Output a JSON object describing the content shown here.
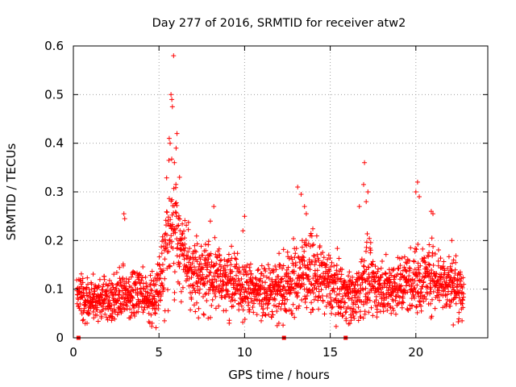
{
  "chart_data": {
    "type": "scatter",
    "title": "Day 277 of 2016, SRMTID for receiver atw2",
    "xlabel": "GPS time / hours",
    "ylabel": "SRMTID / TECUs",
    "xlim": [
      0,
      24.2
    ],
    "ylim": [
      0,
      0.6
    ],
    "xticks": [
      0,
      5,
      10,
      15,
      20
    ],
    "xtick_labels": [
      "0",
      "5",
      "10",
      "15",
      "20"
    ],
    "yticks": [
      0,
      0.1,
      0.2,
      0.3,
      0.4,
      0.5,
      0.6
    ],
    "ytick_labels": [
      "0",
      "0.1",
      "0.2",
      "0.3",
      "0.4",
      "0.5",
      "0.6"
    ],
    "grid": true,
    "marker": "+",
    "color": "#ff0000",
    "data_gap_markers_x": [
      0.3,
      12.3,
      15.9
    ],
    "series": [
      {
        "name": "SRMTID",
        "profile_x": [
          0.2,
          1.0,
          2.0,
          3.0,
          4.0,
          4.8,
          5.1,
          5.5,
          5.8,
          6.2,
          6.6,
          7.0,
          8.0,
          9.0,
          10.0,
          11.0,
          12.0,
          13.0,
          13.6,
          14.0,
          15.0,
          16.0,
          16.4,
          17.0,
          17.5,
          18.0,
          19.0,
          20.0,
          20.5,
          21.0,
          22.0,
          22.8
        ],
        "profile_median": [
          0.09,
          0.08,
          0.08,
          0.09,
          0.09,
          0.08,
          0.13,
          0.2,
          0.24,
          0.2,
          0.15,
          0.13,
          0.13,
          0.12,
          0.1,
          0.1,
          0.1,
          0.12,
          0.14,
          0.13,
          0.11,
          0.09,
          0.08,
          0.12,
          0.11,
          0.1,
          0.11,
          0.12,
          0.12,
          0.13,
          0.11,
          0.1
        ],
        "profile_spread": [
          0.03,
          0.03,
          0.03,
          0.035,
          0.035,
          0.03,
          0.05,
          0.08,
          0.09,
          0.06,
          0.05,
          0.045,
          0.045,
          0.04,
          0.035,
          0.035,
          0.04,
          0.05,
          0.05,
          0.045,
          0.04,
          0.035,
          0.035,
          0.05,
          0.04,
          0.035,
          0.04,
          0.045,
          0.045,
          0.045,
          0.04,
          0.035
        ],
        "outliers": [
          [
            2.95,
            0.255
          ],
          [
            3.0,
            0.245
          ],
          [
            5.7,
            0.5
          ],
          [
            5.75,
            0.49
          ],
          [
            5.78,
            0.475
          ],
          [
            5.85,
            0.58
          ],
          [
            5.6,
            0.41
          ],
          [
            5.65,
            0.4
          ],
          [
            6.05,
            0.42
          ],
          [
            6.0,
            0.39
          ],
          [
            5.9,
            0.36
          ],
          [
            6.2,
            0.33
          ],
          [
            8.2,
            0.27
          ],
          [
            8.0,
            0.24
          ],
          [
            10.0,
            0.25
          ],
          [
            9.9,
            0.22
          ],
          [
            13.1,
            0.31
          ],
          [
            13.3,
            0.295
          ],
          [
            13.5,
            0.27
          ],
          [
            13.6,
            0.255
          ],
          [
            16.7,
            0.27
          ],
          [
            17.0,
            0.36
          ],
          [
            16.95,
            0.315
          ],
          [
            17.2,
            0.3
          ],
          [
            17.1,
            0.28
          ],
          [
            20.1,
            0.32
          ],
          [
            20.0,
            0.3
          ],
          [
            20.2,
            0.29
          ],
          [
            20.9,
            0.26
          ],
          [
            21.0,
            0.255
          ],
          [
            22.1,
            0.2
          ],
          [
            9.1,
            0.03
          ],
          [
            11.9,
            0.025
          ],
          [
            12.0,
            0.03
          ],
          [
            4.6,
            0.03
          ],
          [
            16.4,
            0.04
          ],
          [
            0.8,
            0.03
          ],
          [
            22.7,
            0.035
          ]
        ]
      }
    ]
  }
}
